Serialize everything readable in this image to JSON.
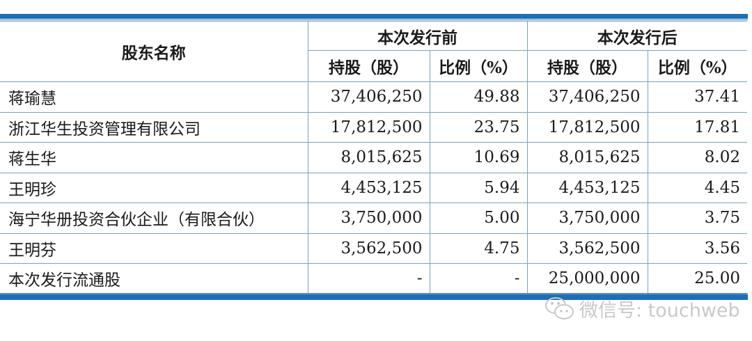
{
  "table": {
    "header": {
      "name": "股东名称",
      "before": "本次发行前",
      "after": "本次发行后",
      "shares": "持股（股）",
      "ratio": "比例（%）"
    },
    "rows": [
      {
        "name": "蒋瑜慧",
        "before_shares": "37,406,250",
        "before_ratio": "49.88",
        "after_shares": "37,406,250",
        "after_ratio": "37.41"
      },
      {
        "name": "浙江华生投资管理有限公司",
        "before_shares": "17,812,500",
        "before_ratio": "23.75",
        "after_shares": "17,812,500",
        "after_ratio": "17.81"
      },
      {
        "name": "蒋生华",
        "before_shares": "8,015,625",
        "before_ratio": "10.69",
        "after_shares": "8,015,625",
        "after_ratio": "8.02"
      },
      {
        "name": "王明珍",
        "before_shares": "4,453,125",
        "before_ratio": "5.94",
        "after_shares": "4,453,125",
        "after_ratio": "4.45"
      },
      {
        "name": "海宁华册投资合伙企业（有限合伙）",
        "before_shares": "3,750,000",
        "before_ratio": "5.00",
        "after_shares": "3,750,000",
        "after_ratio": "3.75"
      },
      {
        "name": "王明芬",
        "before_shares": "3,562,500",
        "before_ratio": "4.75",
        "after_shares": "3,562,500",
        "after_ratio": "3.56"
      },
      {
        "name": "本次发行流通股",
        "before_shares": "-",
        "before_ratio": "-",
        "after_shares": "25,000,000",
        "after_ratio": "25.00"
      }
    ]
  },
  "watermark": {
    "text": "微信号: touchweb",
    "icon": "wechat-icon"
  },
  "colors": {
    "rule": "#1a6fb8",
    "grid": "#7da2b8"
  }
}
